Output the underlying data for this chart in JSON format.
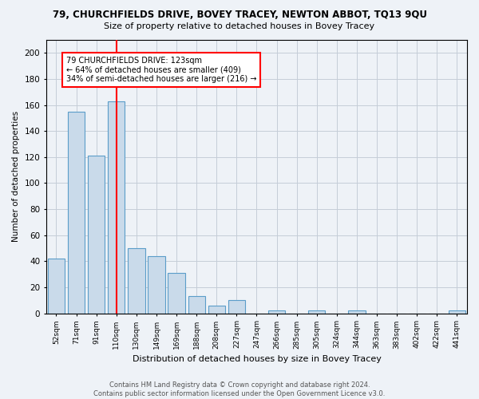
{
  "title1": "79, CHURCHFIELDS DRIVE, BOVEY TRACEY, NEWTON ABBOT, TQ13 9QU",
  "title2": "Size of property relative to detached houses in Bovey Tracey",
  "xlabel": "Distribution of detached houses by size in Bovey Tracey",
  "ylabel": "Number of detached properties",
  "categories": [
    "52sqm",
    "71sqm",
    "91sqm",
    "110sqm",
    "130sqm",
    "149sqm",
    "169sqm",
    "188sqm",
    "208sqm",
    "227sqm",
    "247sqm",
    "266sqm",
    "285sqm",
    "305sqm",
    "324sqm",
    "344sqm",
    "363sqm",
    "383sqm",
    "402sqm",
    "422sqm",
    "441sqm"
  ],
  "values": [
    42,
    155,
    121,
    163,
    50,
    44,
    31,
    13,
    6,
    10,
    0,
    2,
    0,
    2,
    0,
    2,
    0,
    0,
    0,
    0,
    2
  ],
  "bar_color": "#c9daea",
  "bar_edge_color": "#5b9dc9",
  "highlight_index": 3,
  "annotation_line1": "79 CHURCHFIELDS DRIVE: 123sqm",
  "annotation_line2": "← 64% of detached houses are smaller (409)",
  "annotation_line3": "34% of semi-detached houses are larger (216) →",
  "annotation_box_color": "white",
  "annotation_box_edge_color": "red",
  "ylim": [
    0,
    210
  ],
  "yticks": [
    0,
    20,
    40,
    60,
    80,
    100,
    120,
    140,
    160,
    180,
    200
  ],
  "footer1": "Contains HM Land Registry data © Crown copyright and database right 2024.",
  "footer2": "Contains public sector information licensed under the Open Government Licence v3.0.",
  "bg_color": "#eef2f7",
  "grid_color": "#c5cdd8"
}
